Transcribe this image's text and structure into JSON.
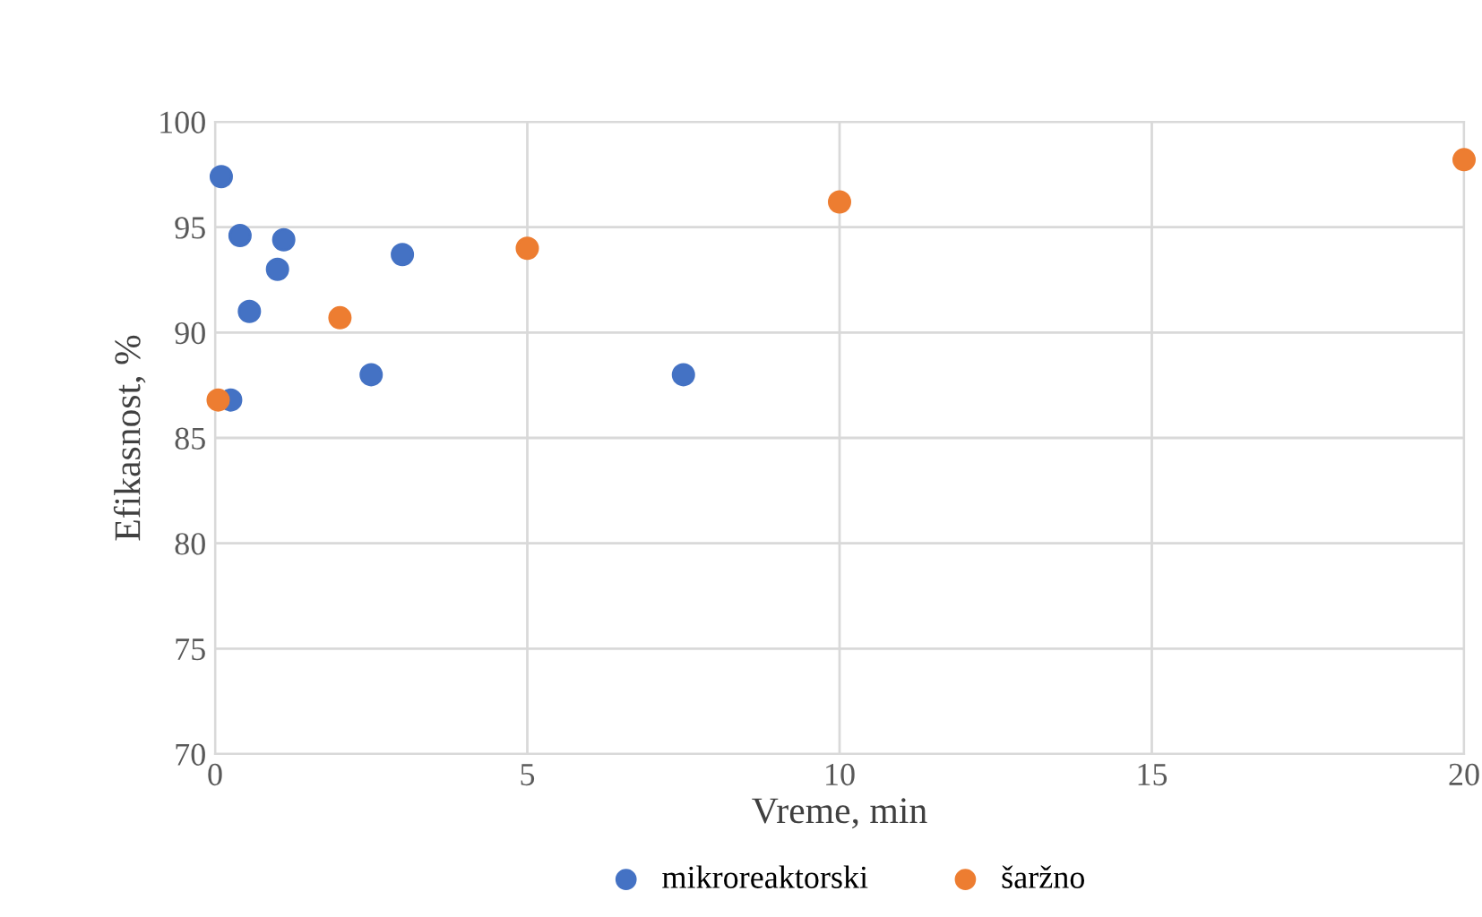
{
  "chart_data": {
    "type": "scatter",
    "xlabel": "Vreme, min",
    "ylabel": "Efikasnost, %",
    "xlim": [
      0,
      20
    ],
    "xticks": [
      0,
      5,
      10,
      15,
      20
    ],
    "ylim": [
      70,
      100
    ],
    "yticks": [
      70,
      75,
      80,
      85,
      90,
      95,
      100
    ],
    "grid": true,
    "legend": "bottom",
    "marker": "circle",
    "series": [
      {
        "name": "mikroreaktorski",
        "color": "#4472c4",
        "x": [
          0.1,
          0.25,
          0.4,
          0.55,
          1.0,
          1.1,
          2.5,
          3.0,
          7.5
        ],
        "values": [
          97.4,
          86.8,
          94.6,
          91.0,
          93.0,
          94.4,
          88.0,
          93.7,
          88.0
        ]
      },
      {
        "name": "šaržno",
        "color": "#ed7d31",
        "x": [
          0.05,
          2.0,
          5.0,
          10.0,
          20.0
        ],
        "values": [
          86.8,
          90.7,
          94.0,
          96.2,
          98.2
        ]
      }
    ]
  }
}
